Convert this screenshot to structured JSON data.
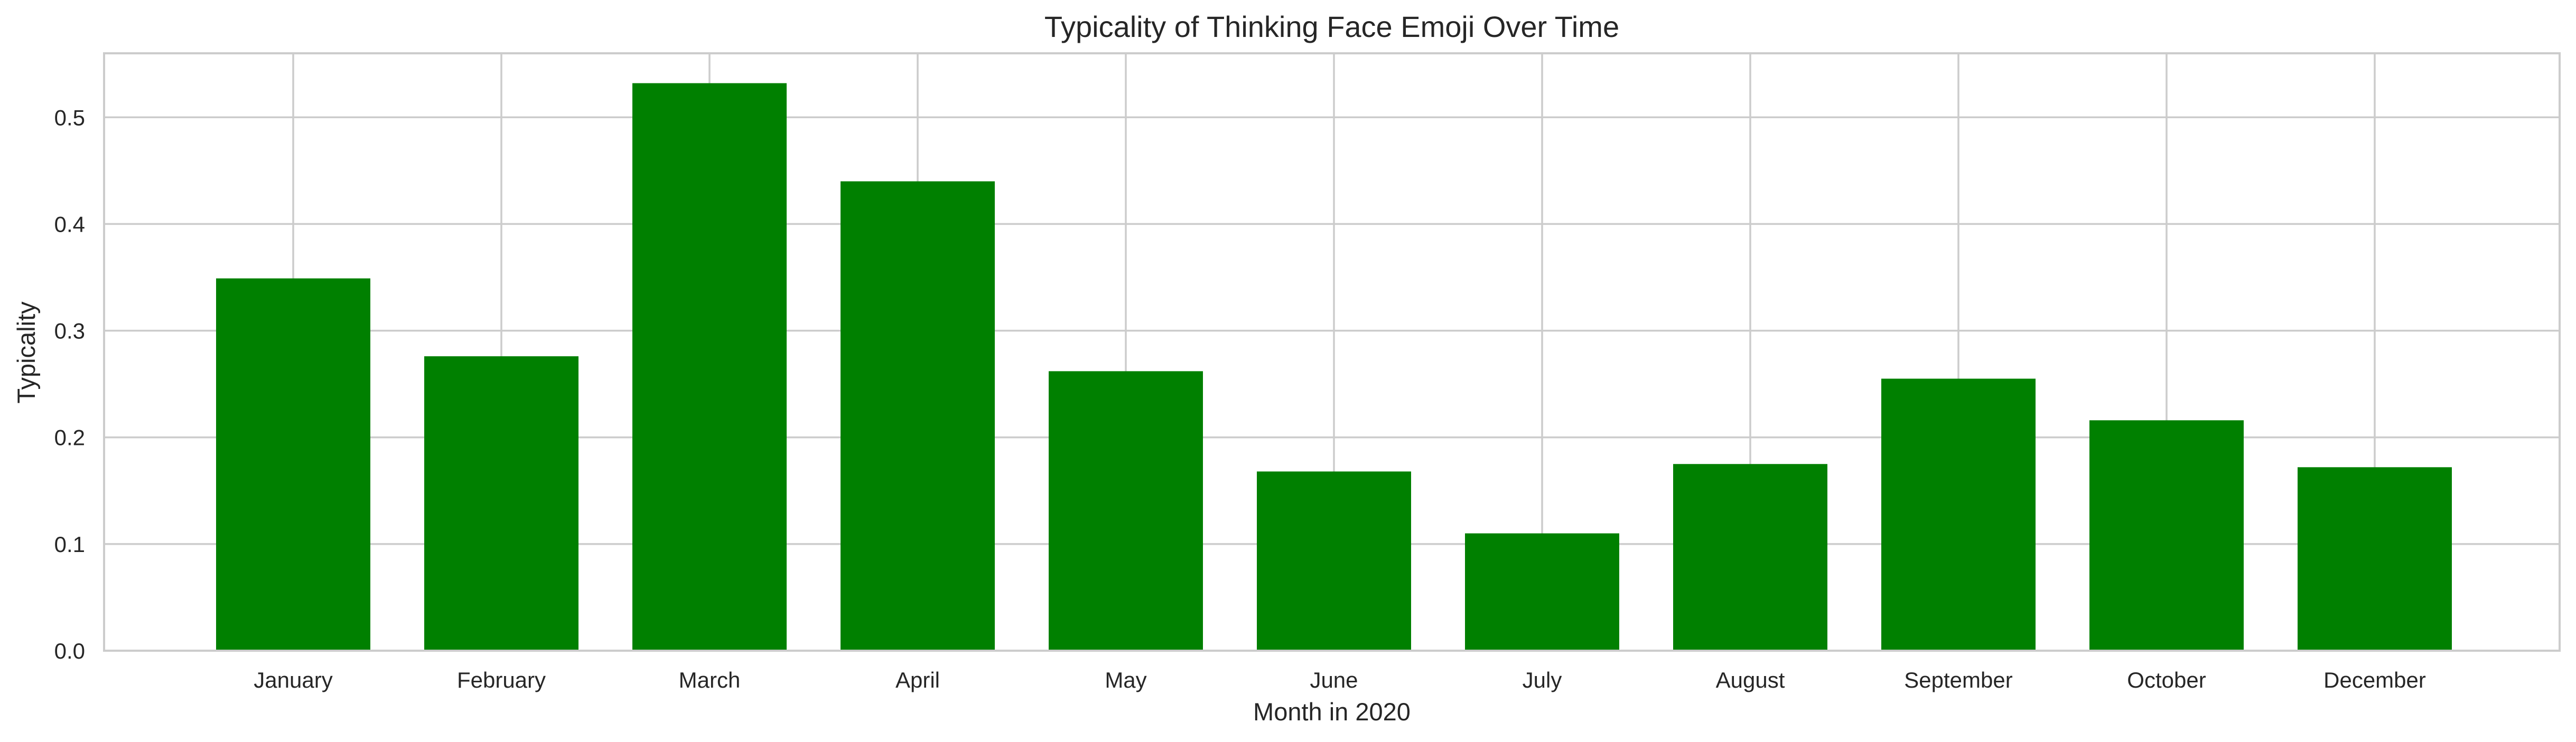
{
  "chart_data": {
    "type": "bar",
    "title": "Typicality of Thinking Face Emoji Over Time",
    "xlabel": "Month in 2020",
    "ylabel": "Typicality",
    "categories": [
      "January",
      "February",
      "March",
      "April",
      "May",
      "June",
      "July",
      "August",
      "September",
      "October",
      "December"
    ],
    "values": [
      0.349,
      0.276,
      0.532,
      0.44,
      0.262,
      0.168,
      0.11,
      0.175,
      0.255,
      0.216,
      0.172
    ],
    "ylim": [
      0,
      0.56
    ],
    "yticks": [
      0.0,
      0.1,
      0.2,
      0.3,
      0.4,
      0.5
    ],
    "ytick_labels": [
      "0.0",
      "0.1",
      "0.2",
      "0.3",
      "0.4",
      "0.5"
    ],
    "bar_color": "#008000",
    "grid": true,
    "legend": "none"
  }
}
